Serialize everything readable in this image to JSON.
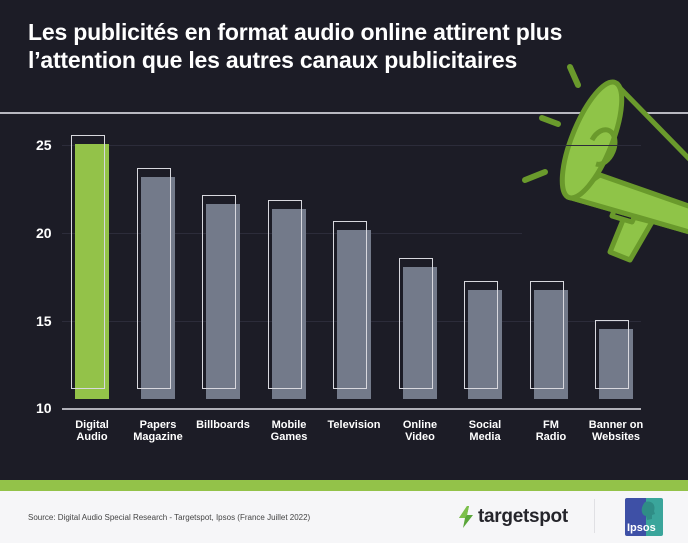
{
  "header": {
    "title": "Les publicités en format audio online attirent plus l’attention que les autres canaux publicitaires"
  },
  "colors": {
    "background": "#1c1c26",
    "highlight_bar": "#93c249",
    "bar": "#737a8a",
    "accent_band": "#93c249",
    "megaphone_dark": "#6a9a2c",
    "megaphone_light": "#8fc448"
  },
  "chart_data": {
    "type": "bar",
    "title": "Les publicités en format audio online attirent plus l’attention que les autres canaux publicitaires",
    "xlabel": "",
    "ylabel": "",
    "ylim": [
      10,
      26
    ],
    "yticks": [
      "25",
      "20",
      "15",
      "10"
    ],
    "grid": true,
    "categories": [
      "Digital Audio",
      "Papers Magazine",
      "Billboards",
      "Mobile Games",
      "Television",
      "Online Video",
      "Social Media",
      "FM Radio",
      "Banner on Websites"
    ],
    "category_lines": [
      [
        "Digital",
        "Audio"
      ],
      [
        "Papers",
        "Magazine"
      ],
      [
        "Billboards",
        ""
      ],
      [
        "Mobile",
        "Games"
      ],
      [
        "Television",
        ""
      ],
      [
        "Online",
        "Video"
      ],
      [
        "Social",
        "Media"
      ],
      [
        "FM",
        "Radio"
      ],
      [
        "Banner on",
        "Websites"
      ]
    ],
    "values": [
      25.0,
      23.1,
      21.6,
      21.3,
      20.1,
      18.0,
      16.7,
      16.7,
      14.5
    ],
    "highlight": "Digital Audio"
  },
  "footer": {
    "source": "Source: Digital Audio Special Research - Targetspot, Ipsos (France Juillet 2022)",
    "brand1": "targetspot",
    "brand2": "Ipsos"
  }
}
